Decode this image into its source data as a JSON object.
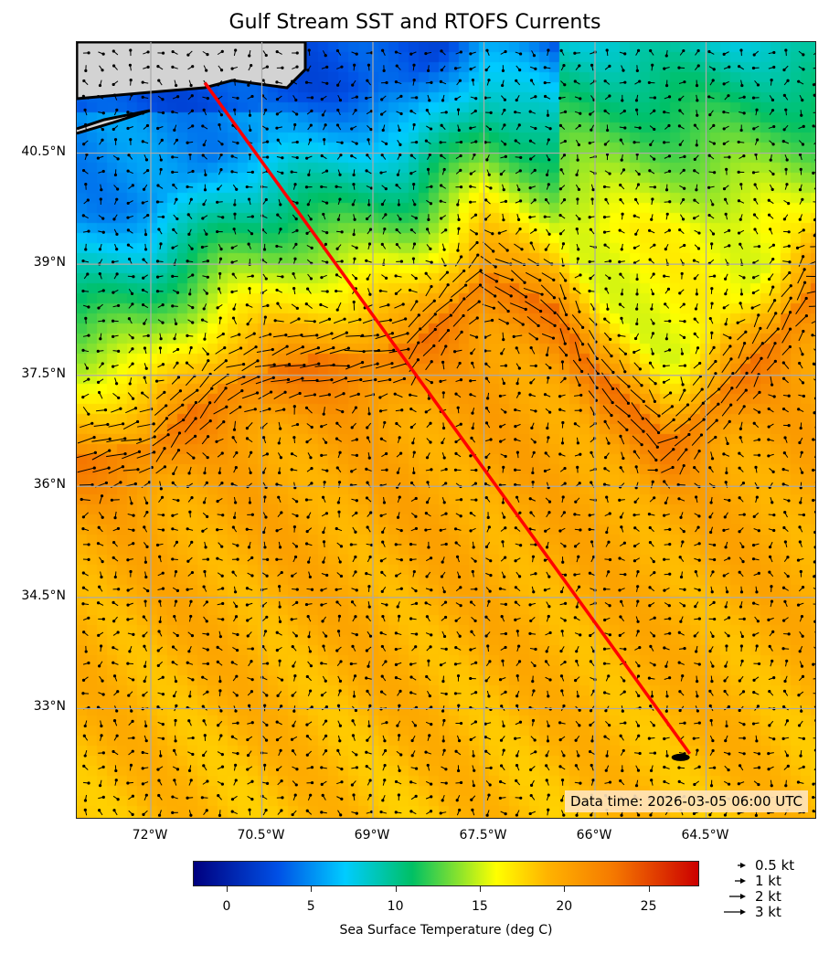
{
  "title": "Gulf Stream SST and RTOFS Currents",
  "map": {
    "lon_range": [
      -73,
      -63
    ],
    "lat_range": [
      31.5,
      42
    ],
    "x_ticks": [
      "72°W",
      "70.5°W",
      "69°W",
      "67.5°W",
      "66°W",
      "64.5°W"
    ],
    "x_tick_values": [
      -72,
      -70.5,
      -69,
      -67.5,
      -66,
      -64.5
    ],
    "y_ticks": [
      "40.5°N",
      "39°N",
      "37.5°N",
      "36°N",
      "34.5°N",
      "33°N"
    ],
    "y_tick_values": [
      40.5,
      39,
      37.5,
      36,
      34.5,
      33
    ],
    "grid": true,
    "land_color": "#d3d3d3",
    "route": {
      "color": "#ff0000",
      "start": [
        -71.27,
        41.45
      ],
      "end": [
        -64.72,
        32.39
      ]
    },
    "data_time": "Data time: 2026-03-05 06:00 UTC"
  },
  "colorbar": {
    "label": "Sea Surface Temperature (deg C)",
    "range": [
      -2,
      28
    ],
    "ticks": [
      "0",
      "5",
      "10",
      "15",
      "20",
      "25"
    ],
    "tick_values": [
      0,
      5,
      10,
      15,
      20,
      25
    ]
  },
  "quiver_legend": [
    "0.5 kt",
    "1 kt",
    "2 kt",
    "3 kt"
  ],
  "quiver_legend_values": [
    0.5,
    1,
    2,
    3
  ]
}
